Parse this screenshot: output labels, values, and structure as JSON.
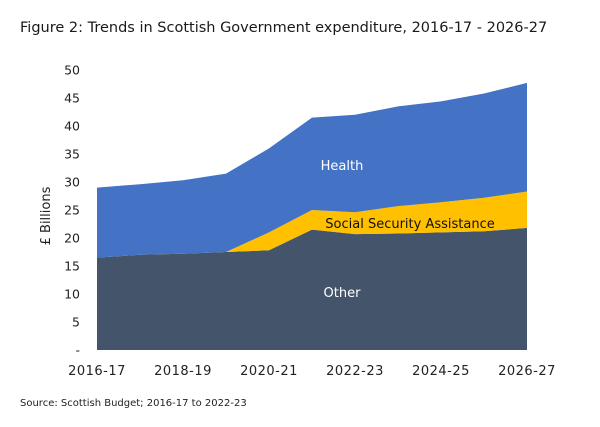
{
  "title": "Figure 2: Trends in Scottish Government expenditure, 2016-17 - 2026-27",
  "source": "Source: Scottish Budget; 2016-17 to 2022-23",
  "chart_data": {
    "type": "area",
    "stacked": true,
    "ylabel": "£ Billions",
    "ylim": [
      0,
      50
    ],
    "yticks": [
      "-",
      "5",
      "10",
      "15",
      "20",
      "25",
      "30",
      "35",
      "40",
      "45",
      "50"
    ],
    "x": [
      "2016-17",
      "2017-18",
      "2018-19",
      "2019-20",
      "2020-21",
      "2021-22",
      "2022-23",
      "2023-24",
      "2024-25",
      "2025-26",
      "2026-27"
    ],
    "xtick_labels": [
      "2016-17",
      "2018-19",
      "2020-21",
      "2022-23",
      "2024-25",
      "2026-27"
    ],
    "series": [
      {
        "name": "Other",
        "color": "#44546a",
        "values": [
          16.5,
          17.0,
          17.2,
          17.5,
          17.8,
          21.5,
          20.7,
          20.8,
          21.0,
          21.2,
          21.8
        ]
      },
      {
        "name": "Social Security Assistance",
        "color": "#ffc000",
        "values": [
          0.0,
          0.0,
          0.0,
          0.0,
          3.2,
          3.5,
          3.9,
          4.9,
          5.4,
          6.0,
          6.5
        ]
      },
      {
        "name": "Health",
        "color": "#4472c4",
        "values": [
          12.5,
          12.6,
          13.1,
          14.0,
          15.0,
          16.5,
          17.4,
          17.8,
          18.0,
          18.6,
          19.4
        ]
      }
    ],
    "grid": false,
    "legend": "inline"
  }
}
